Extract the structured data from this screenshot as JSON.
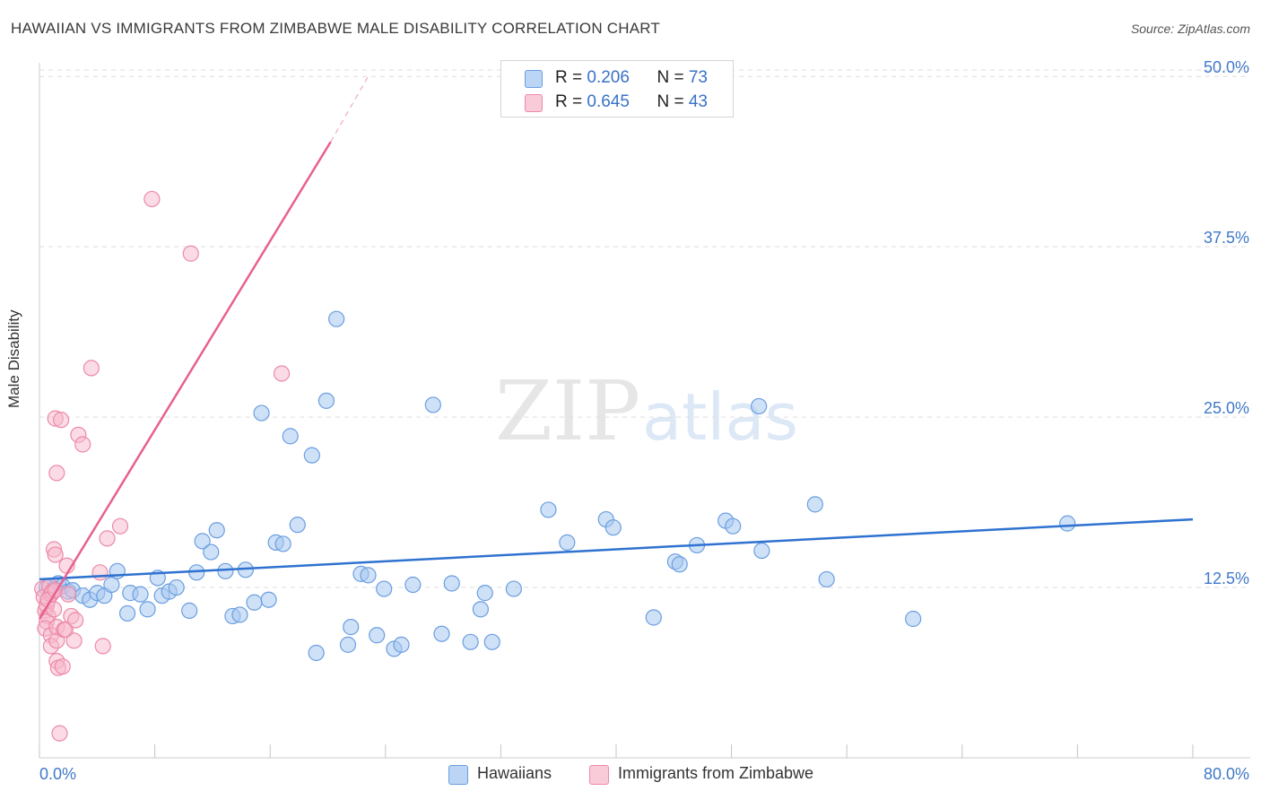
{
  "header": {
    "title": "HAWAIIAN VS IMMIGRANTS FROM ZIMBABWE MALE DISABILITY CORRELATION CHART",
    "source": "Source: ZipAtlas.com"
  },
  "legend": {
    "rows": [
      {
        "r_label": "R = ",
        "r_value": "0.206",
        "n_label": "N = ",
        "n_value": "73"
      },
      {
        "r_label": "R = ",
        "r_value": "0.645",
        "n_label": "N = ",
        "n_value": "43"
      }
    ]
  },
  "bottom_legend": {
    "items": [
      {
        "label": "Hawaiians"
      },
      {
        "label": "Immigrants from Zimbabwe"
      }
    ]
  },
  "watermark": {
    "zip": "ZIP",
    "atlas": "atlas"
  },
  "colors": {
    "blue_fill": "#a8c8f0",
    "blue_stroke": "#6a9ee0",
    "blue_line": "#2f72d0",
    "pink_fill": "#f7b8cc",
    "pink_stroke": "#ec8aa8",
    "pink_line": "#e8608e",
    "tick_label": "#3f78c8",
    "grid": "#dddddd"
  },
  "chart_data": {
    "type": "scatter",
    "title": "HAWAIIAN VS IMMIGRANTS FROM ZIMBABWE MALE DISABILITY CORRELATION CHART",
    "xlabel": "",
    "ylabel": "Male Disability",
    "xlim": [
      0,
      80
    ],
    "ylim": [
      0,
      51
    ],
    "x_tick_labels": [
      {
        "value": 0,
        "label": "0.0%"
      },
      {
        "value": 80,
        "label": "80.0%"
      }
    ],
    "y_tick_labels": [
      {
        "value": 12.5,
        "label": "12.5%"
      },
      {
        "value": 25.0,
        "label": "25.0%"
      },
      {
        "value": 37.5,
        "label": "37.5%"
      },
      {
        "value": 50.0,
        "label": "50.0%"
      }
    ],
    "x_minor_ticks": [
      0,
      8,
      16,
      24,
      32,
      40,
      48,
      56,
      64,
      72,
      80
    ],
    "series": [
      {
        "name": "Hawaiians",
        "r": 0.206,
        "n": 73,
        "trend": {
          "x0": 0,
          "y0": 13.1,
          "x1": 80,
          "y1": 17.5
        },
        "points": [
          [
            0.5,
            12.5
          ],
          [
            0.8,
            12.0
          ],
          [
            1.0,
            12.4
          ],
          [
            1.3,
            12.8
          ],
          [
            1.6,
            12.6
          ],
          [
            2.0,
            12.2
          ],
          [
            2.3,
            12.3
          ],
          [
            3.0,
            11.9
          ],
          [
            3.5,
            11.6
          ],
          [
            4.0,
            12.1
          ],
          [
            4.5,
            11.9
          ],
          [
            5.0,
            12.7
          ],
          [
            5.4,
            13.7
          ],
          [
            6.1,
            10.6
          ],
          [
            6.3,
            12.1
          ],
          [
            7.0,
            12.0
          ],
          [
            7.5,
            10.9
          ],
          [
            8.2,
            13.2
          ],
          [
            8.5,
            11.9
          ],
          [
            9.0,
            12.2
          ],
          [
            9.5,
            12.5
          ],
          [
            10.4,
            10.8
          ],
          [
            10.9,
            13.6
          ],
          [
            11.3,
            15.9
          ],
          [
            11.9,
            15.1
          ],
          [
            12.3,
            16.7
          ],
          [
            12.9,
            13.7
          ],
          [
            13.4,
            10.4
          ],
          [
            13.9,
            10.5
          ],
          [
            14.3,
            13.8
          ],
          [
            14.9,
            11.4
          ],
          [
            15.4,
            25.3
          ],
          [
            15.9,
            11.6
          ],
          [
            16.4,
            15.8
          ],
          [
            16.9,
            15.7
          ],
          [
            17.4,
            23.6
          ],
          [
            17.9,
            17.1
          ],
          [
            18.9,
            22.2
          ],
          [
            19.2,
            7.7
          ],
          [
            19.9,
            26.2
          ],
          [
            20.6,
            32.2
          ],
          [
            21.4,
            8.3
          ],
          [
            21.6,
            9.6
          ],
          [
            22.3,
            13.5
          ],
          [
            22.8,
            13.4
          ],
          [
            23.4,
            9.0
          ],
          [
            23.9,
            12.4
          ],
          [
            24.6,
            8.0
          ],
          [
            25.1,
            8.3
          ],
          [
            25.9,
            12.7
          ],
          [
            27.3,
            25.9
          ],
          [
            27.9,
            9.1
          ],
          [
            28.6,
            12.8
          ],
          [
            29.9,
            8.5
          ],
          [
            30.6,
            10.9
          ],
          [
            30.9,
            12.1
          ],
          [
            31.4,
            8.5
          ],
          [
            32.9,
            12.4
          ],
          [
            35.3,
            18.2
          ],
          [
            36.6,
            15.8
          ],
          [
            39.3,
            17.5
          ],
          [
            39.8,
            16.9
          ],
          [
            42.6,
            10.3
          ],
          [
            44.1,
            14.4
          ],
          [
            44.4,
            14.2
          ],
          [
            45.6,
            15.6
          ],
          [
            47.6,
            17.4
          ],
          [
            48.1,
            17.0
          ],
          [
            49.9,
            25.8
          ],
          [
            50.1,
            15.2
          ],
          [
            53.8,
            18.6
          ],
          [
            54.6,
            13.1
          ],
          [
            60.6,
            10.2
          ],
          [
            71.3,
            17.2
          ]
        ]
      },
      {
        "name": "Immigrants from Zimbabwe",
        "r": 0.645,
        "n": 43,
        "trend": {
          "x0": 0,
          "y0": 10.2,
          "x1": 20.2,
          "y1": 45.2
        },
        "trend_dashed_to": {
          "x": 22.8,
          "y": 50.0
        },
        "points": [
          [
            0.2,
            12.4
          ],
          [
            0.3,
            11.8
          ],
          [
            0.4,
            10.8
          ],
          [
            0.5,
            11.2
          ],
          [
            0.6,
            10.4
          ],
          [
            0.7,
            12.6
          ],
          [
            0.8,
            12.0
          ],
          [
            0.9,
            12.2
          ],
          [
            0.5,
            10.0
          ],
          [
            0.4,
            9.5
          ],
          [
            0.6,
            11.6
          ],
          [
            0.8,
            9.0
          ],
          [
            0.8,
            8.2
          ],
          [
            1.0,
            10.9
          ],
          [
            1.1,
            12.3
          ],
          [
            1.2,
            8.6
          ],
          [
            1.0,
            15.3
          ],
          [
            1.1,
            14.9
          ],
          [
            1.2,
            9.6
          ],
          [
            1.2,
            7.1
          ],
          [
            1.3,
            6.6
          ],
          [
            1.4,
            1.8
          ],
          [
            1.2,
            20.9
          ],
          [
            1.1,
            24.9
          ],
          [
            1.5,
            24.8
          ],
          [
            1.6,
            6.7
          ],
          [
            1.7,
            9.4
          ],
          [
            1.8,
            9.4
          ],
          [
            1.9,
            14.1
          ],
          [
            2.0,
            12.0
          ],
          [
            2.2,
            10.4
          ],
          [
            2.4,
            8.6
          ],
          [
            2.5,
            10.1
          ],
          [
            2.7,
            23.7
          ],
          [
            3.0,
            23.0
          ],
          [
            3.6,
            28.6
          ],
          [
            4.2,
            13.6
          ],
          [
            4.4,
            8.2
          ],
          [
            4.7,
            16.1
          ],
          [
            5.6,
            17.0
          ],
          [
            7.8,
            41.0
          ],
          [
            10.5,
            37.0
          ],
          [
            16.8,
            28.2
          ]
        ]
      }
    ]
  }
}
